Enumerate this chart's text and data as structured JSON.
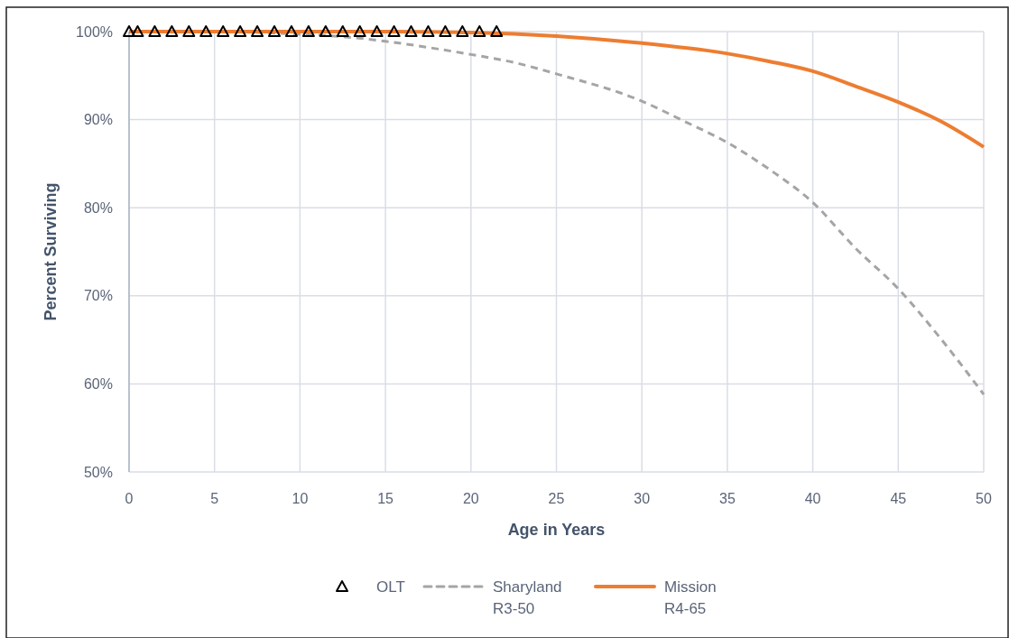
{
  "chart_data": {
    "type": "line",
    "xlabel": "Age in Years",
    "ylabel": "Percent Surviving",
    "xlim": [
      0,
      50
    ],
    "xticks": [
      0,
      5,
      10,
      15,
      20,
      25,
      30,
      35,
      40,
      45,
      50
    ],
    "ylim": [
      50,
      100
    ],
    "yticks": [
      {
        "value": 50,
        "label": "50%"
      },
      {
        "value": 60,
        "label": "60%"
      },
      {
        "value": 70,
        "label": "70%"
      },
      {
        "value": 80,
        "label": "80%"
      },
      {
        "value": 90,
        "label": "90%"
      },
      {
        "value": 100,
        "label": "100%"
      }
    ],
    "grid": true,
    "legend": "bottom",
    "series": [
      {
        "name": "OLT",
        "type": "scatter",
        "marker": "triangle",
        "color": "#000000",
        "x": [
          0,
          0.5,
          1.5,
          2.5,
          3.5,
          4.5,
          5.5,
          6.5,
          7.5,
          8.5,
          9.5,
          10.5,
          11.5,
          12.5,
          13.5,
          14.5,
          15.5,
          16.5,
          17.5,
          18.5,
          19.5,
          20.5,
          21.5
        ],
        "values": [
          100,
          100,
          100,
          100,
          100,
          100,
          100,
          100,
          100,
          100,
          100,
          100,
          100,
          100,
          100,
          100,
          100,
          100,
          100,
          100,
          100,
          100,
          100
        ]
      },
      {
        "name": "Sharyland R3-50",
        "line_style": "dashed",
        "marker": "none",
        "color": "#a5a5a5",
        "x": [
          0,
          5,
          10,
          12,
          15,
          17.5,
          20,
          22.5,
          25,
          30,
          32.5,
          35,
          37.5,
          40,
          42.5,
          45,
          47.5,
          50
        ],
        "values": [
          100,
          100,
          99.7,
          99.5,
          98.9,
          98.2,
          97.4,
          96.5,
          95.2,
          92.1,
          89.8,
          87.4,
          84.3,
          80.6,
          75.4,
          70.8,
          65.1,
          58.8
        ]
      },
      {
        "name": "Mission R4-65",
        "line_style": "solid",
        "marker": "none",
        "color": "#ed7d31",
        "x": [
          0,
          5,
          10,
          15,
          20,
          25,
          30,
          35,
          37.5,
          40,
          42.5,
          45,
          47.5,
          50
        ],
        "values": [
          100,
          100,
          100,
          100,
          99.9,
          99.5,
          98.7,
          97.5,
          96.6,
          95.5,
          93.8,
          92.0,
          89.8,
          86.9
        ]
      }
    ]
  }
}
